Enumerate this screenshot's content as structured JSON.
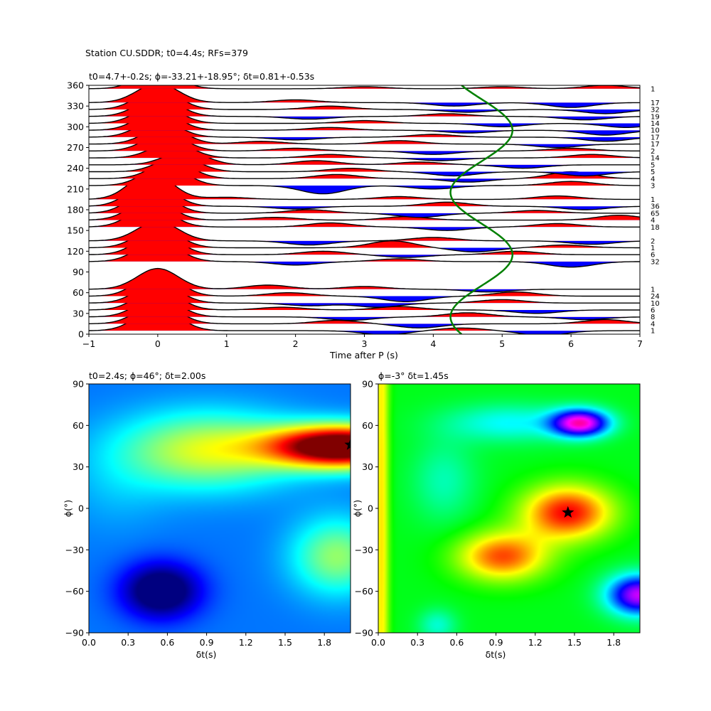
{
  "suptitle": "Station CU.SDDR; t0=4.4s; RFs=379",
  "chart_data": [
    {
      "type": "line",
      "name": "receiver-function-wiggles",
      "title": "t0=4.7+-0.2s; ϕ=-33.21+-18.95°; δt=0.81+-0.53s",
      "xlabel": "Time after P (s)",
      "ylabel": "",
      "xlim": [
        -1,
        7
      ],
      "ylim": [
        0,
        360
      ],
      "xticks": [
        "−1",
        "0",
        "1",
        "2",
        "3",
        "4",
        "5",
        "6",
        "7"
      ],
      "yticks": [
        "0",
        "30",
        "60",
        "90",
        "120",
        "150",
        "180",
        "210",
        "240",
        "270",
        "300",
        "330",
        "360"
      ],
      "positive_fill_color": "#ff0000",
      "negative_fill_color": "#0000ff",
      "trace_color": "#000000",
      "t0_curve_color": "#008000",
      "t0_curve": {
        "center": 4.7,
        "amplitude": 0.45,
        "phase_deg": 70
      },
      "traces": [
        {
          "baz": 5,
          "count": "1",
          "main_amp": 35,
          "main_t": 0.0,
          "wiggles": [
            [
              3.3,
              -6
            ],
            [
              4.4,
              4
            ],
            [
              5.6,
              -7
            ]
          ]
        },
        {
          "baz": 15,
          "count": "4",
          "main_amp": 30,
          "main_t": 0.0,
          "wiggles": [
            [
              2.6,
              5
            ],
            [
              3.8,
              -6
            ],
            [
              6.5,
              6
            ]
          ]
        },
        {
          "baz": 25,
          "count": "8",
          "main_amp": 30,
          "main_t": 0.0,
          "wiggles": [
            [
              2.8,
              -5
            ],
            [
              4.5,
              6
            ],
            [
              6.2,
              -4
            ]
          ]
        },
        {
          "baz": 35,
          "count": "6",
          "main_amp": 32,
          "main_t": 0.0,
          "wiggles": [
            [
              1.8,
              4
            ],
            [
              3.5,
              5
            ],
            [
              5.5,
              -5
            ]
          ]
        },
        {
          "baz": 45,
          "count": "10",
          "main_amp": 30,
          "main_t": 0.0,
          "wiggles": [
            [
              2.2,
              -4
            ],
            [
              3.2,
              -6
            ],
            [
              5.0,
              5
            ]
          ]
        },
        {
          "baz": 55,
          "count": "24",
          "main_amp": 35,
          "main_t": 0.0,
          "wiggles": [
            [
              1.9,
              5
            ],
            [
              3.6,
              -8
            ],
            [
              5.2,
              6
            ]
          ]
        },
        {
          "baz": 65,
          "count": "1",
          "main_amp": 30,
          "main_t": 0.0,
          "wiggles": [
            [
              1.6,
              6
            ],
            [
              3.0,
              4
            ],
            [
              4.8,
              -4
            ]
          ]
        },
        {
          "baz": 105,
          "count": "32",
          "main_amp": 30,
          "main_t": 0.0,
          "wiggles": [
            [
              2.0,
              -5
            ],
            [
              3.5,
              4
            ],
            [
              6.0,
              -8
            ]
          ]
        },
        {
          "baz": 115,
          "count": "6",
          "main_amp": 32,
          "main_t": 0.0,
          "wiggles": [
            [
              2.4,
              5
            ],
            [
              3.6,
              -4
            ],
            [
              5.2,
              5
            ]
          ]
        },
        {
          "baz": 125,
          "count": "1",
          "main_amp": 30,
          "main_t": 0.0,
          "wiggles": [
            [
              3.4,
              10
            ],
            [
              4.6,
              -6
            ],
            [
              5.9,
              4
            ]
          ]
        },
        {
          "baz": 135,
          "count": "2",
          "main_amp": 28,
          "main_t": 0.0,
          "wiggles": [
            [
              2.2,
              -6
            ],
            [
              4.0,
              5
            ],
            [
              6.3,
              -5
            ]
          ]
        },
        {
          "baz": 155,
          "count": "18",
          "main_amp": 30,
          "main_t": -0.1,
          "wiggles": [
            [
              2.5,
              6
            ],
            [
              4.2,
              -5
            ],
            [
              5.8,
              5
            ]
          ]
        },
        {
          "baz": 165,
          "count": "4",
          "main_amp": 30,
          "main_t": -0.1,
          "wiggles": [
            [
              1.7,
              4
            ],
            [
              3.6,
              5
            ],
            [
              6.7,
              7
            ]
          ]
        },
        {
          "baz": 175,
          "count": "65",
          "main_amp": 35,
          "main_t": -0.1,
          "wiggles": [
            [
              2.2,
              5
            ],
            [
              3.8,
              -6
            ],
            [
              5.5,
              4
            ]
          ]
        },
        {
          "baz": 185,
          "count": "36",
          "main_amp": 38,
          "main_t": -0.1,
          "wiggles": [
            [
              2.0,
              -4
            ],
            [
              4.2,
              6
            ],
            [
              6.2,
              -5
            ]
          ]
        },
        {
          "baz": 195,
          "count": "1",
          "main_amp": 40,
          "main_t": -0.1,
          "wiggles": [
            [
              1.0,
              3
            ],
            [
              3.5,
              4
            ],
            [
              5.8,
              5
            ]
          ]
        },
        {
          "baz": 215,
          "count": "3",
          "main_amp": 30,
          "main_t": 0.1,
          "wiggles": [
            [
              2.4,
              -12
            ],
            [
              4.0,
              -5
            ],
            [
              6.0,
              6
            ]
          ]
        },
        {
          "baz": 225,
          "count": "4",
          "main_amp": 25,
          "main_t": 0.2,
          "wiggles": [
            [
              2.6,
              6
            ],
            [
              4.5,
              -5
            ],
            [
              6.0,
              10
            ]
          ]
        },
        {
          "baz": 235,
          "count": "5",
          "main_amp": 22,
          "main_t": 0.3,
          "wiggles": [
            [
              2.8,
              5
            ],
            [
              4.3,
              -6
            ],
            [
              6.2,
              -6
            ]
          ]
        },
        {
          "baz": 245,
          "count": "5",
          "main_amp": 20,
          "main_t": 0.4,
          "wiggles": [
            [
              2.3,
              6
            ],
            [
              3.8,
              4
            ],
            [
              5.3,
              -5
            ]
          ]
        },
        {
          "baz": 255,
          "count": "14",
          "main_amp": 22,
          "main_t": 0.2,
          "wiggles": [
            [
              2.5,
              5
            ],
            [
              4.1,
              -4
            ],
            [
              6.3,
              5
            ]
          ]
        },
        {
          "baz": 265,
          "count": "2",
          "main_amp": 25,
          "main_t": 0.1,
          "wiggles": [
            [
              2.0,
              4
            ],
            [
              4.0,
              -5
            ],
            [
              6.0,
              4
            ]
          ]
        },
        {
          "baz": 275,
          "count": "17",
          "main_amp": 25,
          "main_t": 0.1,
          "wiggles": [
            [
              1.5,
              4
            ],
            [
              3.5,
              5
            ],
            [
              5.8,
              -5
            ]
          ]
        },
        {
          "baz": 285,
          "count": "17",
          "main_amp": 25,
          "main_t": 0.0,
          "wiggles": [
            [
              2.0,
              -4
            ],
            [
              4.0,
              4
            ],
            [
              6.5,
              -6
            ]
          ]
        },
        {
          "baz": 295,
          "count": "10",
          "main_amp": 28,
          "main_t": 0.0,
          "wiggles": [
            [
              2.5,
              4
            ],
            [
              4.5,
              -4
            ],
            [
              6.5,
              -7
            ]
          ]
        },
        {
          "baz": 305,
          "count": "14",
          "main_amp": 28,
          "main_t": 0.0,
          "wiggles": [
            [
              3.0,
              4
            ],
            [
              5.0,
              -5
            ],
            [
              6.8,
              -6
            ]
          ]
        },
        {
          "baz": 315,
          "count": "19",
          "main_amp": 28,
          "main_t": 0.0,
          "wiggles": [
            [
              2.2,
              -4
            ],
            [
              4.2,
              4
            ],
            [
              6.2,
              -5
            ]
          ]
        },
        {
          "baz": 325,
          "count": "32",
          "main_amp": 30,
          "main_t": 0.0,
          "wiggles": [
            [
              2.5,
              5
            ],
            [
              4.5,
              -4
            ],
            [
              6.5,
              -6
            ]
          ]
        },
        {
          "baz": 335,
          "count": "17",
          "main_amp": 28,
          "main_t": 0.0,
          "wiggles": [
            [
              2.0,
              4
            ],
            [
              4.3,
              -5
            ],
            [
              6.0,
              -7
            ]
          ]
        },
        {
          "baz": 355,
          "count": "1",
          "main_amp": 25,
          "main_t": 0.0,
          "wiggles": [
            [
              3.0,
              3
            ],
            [
              5.0,
              3
            ],
            [
              6.5,
              5
            ]
          ]
        }
      ]
    },
    {
      "type": "heatmap",
      "name": "harmonic-grid-search",
      "title": "t0=2.4s; ϕ=46°; δt=2.00s",
      "xlabel": "δt(s)",
      "ylabel": "ϕ(°)",
      "xlim": [
        0,
        2
      ],
      "ylim": [
        -90,
        90
      ],
      "xticks": [
        "0.0",
        "0.3",
        "0.6",
        "0.9",
        "1.2",
        "1.5",
        "1.8"
      ],
      "yticks": [
        "−90",
        "−60",
        "−30",
        "0",
        "30",
        "60",
        "90"
      ],
      "colormap": "jet",
      "best": {
        "dt": 2.0,
        "phi": 46
      },
      "blobs": [
        {
          "dt": 1.95,
          "phi": 45,
          "sdt": 0.55,
          "sphi": 15,
          "w": 0.95
        },
        {
          "dt": 0.9,
          "phi": 42,
          "sdt": 0.7,
          "sphi": 28,
          "w": 0.35
        },
        {
          "dt": 0.55,
          "phi": -60,
          "sdt": 0.3,
          "sphi": 20,
          "w": -0.35
        },
        {
          "dt": 1.9,
          "phi": -35,
          "sdt": 0.35,
          "sphi": 28,
          "w": 0.28
        },
        {
          "dt": 0.2,
          "phi": 10,
          "sdt": 0.4,
          "sphi": 30,
          "w": 0.05
        }
      ],
      "base_level": 0.24
    },
    {
      "type": "heatmap",
      "name": "energy-grid-search",
      "title": "ϕ=-3° δt=1.45s",
      "xlabel": "δt(s)",
      "ylabel": "ϕ(°)",
      "xlim": [
        0,
        2
      ],
      "ylim": [
        -90,
        90
      ],
      "xticks": [
        "0.0",
        "0.3",
        "0.6",
        "0.9",
        "1.2",
        "1.5",
        "1.8"
      ],
      "yticks": [
        "−90",
        "−60",
        "−30",
        "0",
        "30",
        "60",
        "90"
      ],
      "colormap": "hsv",
      "best": {
        "dt": 1.45,
        "phi": -3
      },
      "blobs": [
        {
          "dt": 1.45,
          "phi": -3,
          "sdt": 0.35,
          "sphi": 20,
          "w": -0.35
        },
        {
          "dt": 0.95,
          "phi": -35,
          "sdt": 0.35,
          "sphi": 18,
          "w": -0.3
        },
        {
          "dt": 1.55,
          "phi": 62,
          "sdt": 0.22,
          "sphi": 10,
          "w": 0.5
        },
        {
          "dt": 1.0,
          "phi": 62,
          "sdt": 0.5,
          "sphi": 14,
          "w": 0.15
        },
        {
          "dt": 2.0,
          "phi": -63,
          "sdt": 0.25,
          "sphi": 15,
          "w": 0.45
        },
        {
          "dt": 0.45,
          "phi": -85,
          "sdt": 0.15,
          "sphi": 12,
          "w": 0.12
        },
        {
          "dt": 0.02,
          "phi": 0,
          "sdt": 0.06,
          "sphi": 400,
          "w": -0.2
        },
        {
          "dt": 0.5,
          "phi": 20,
          "sdt": 0.25,
          "sphi": 30,
          "w": 0.1
        }
      ],
      "base_level": 0.35
    }
  ]
}
